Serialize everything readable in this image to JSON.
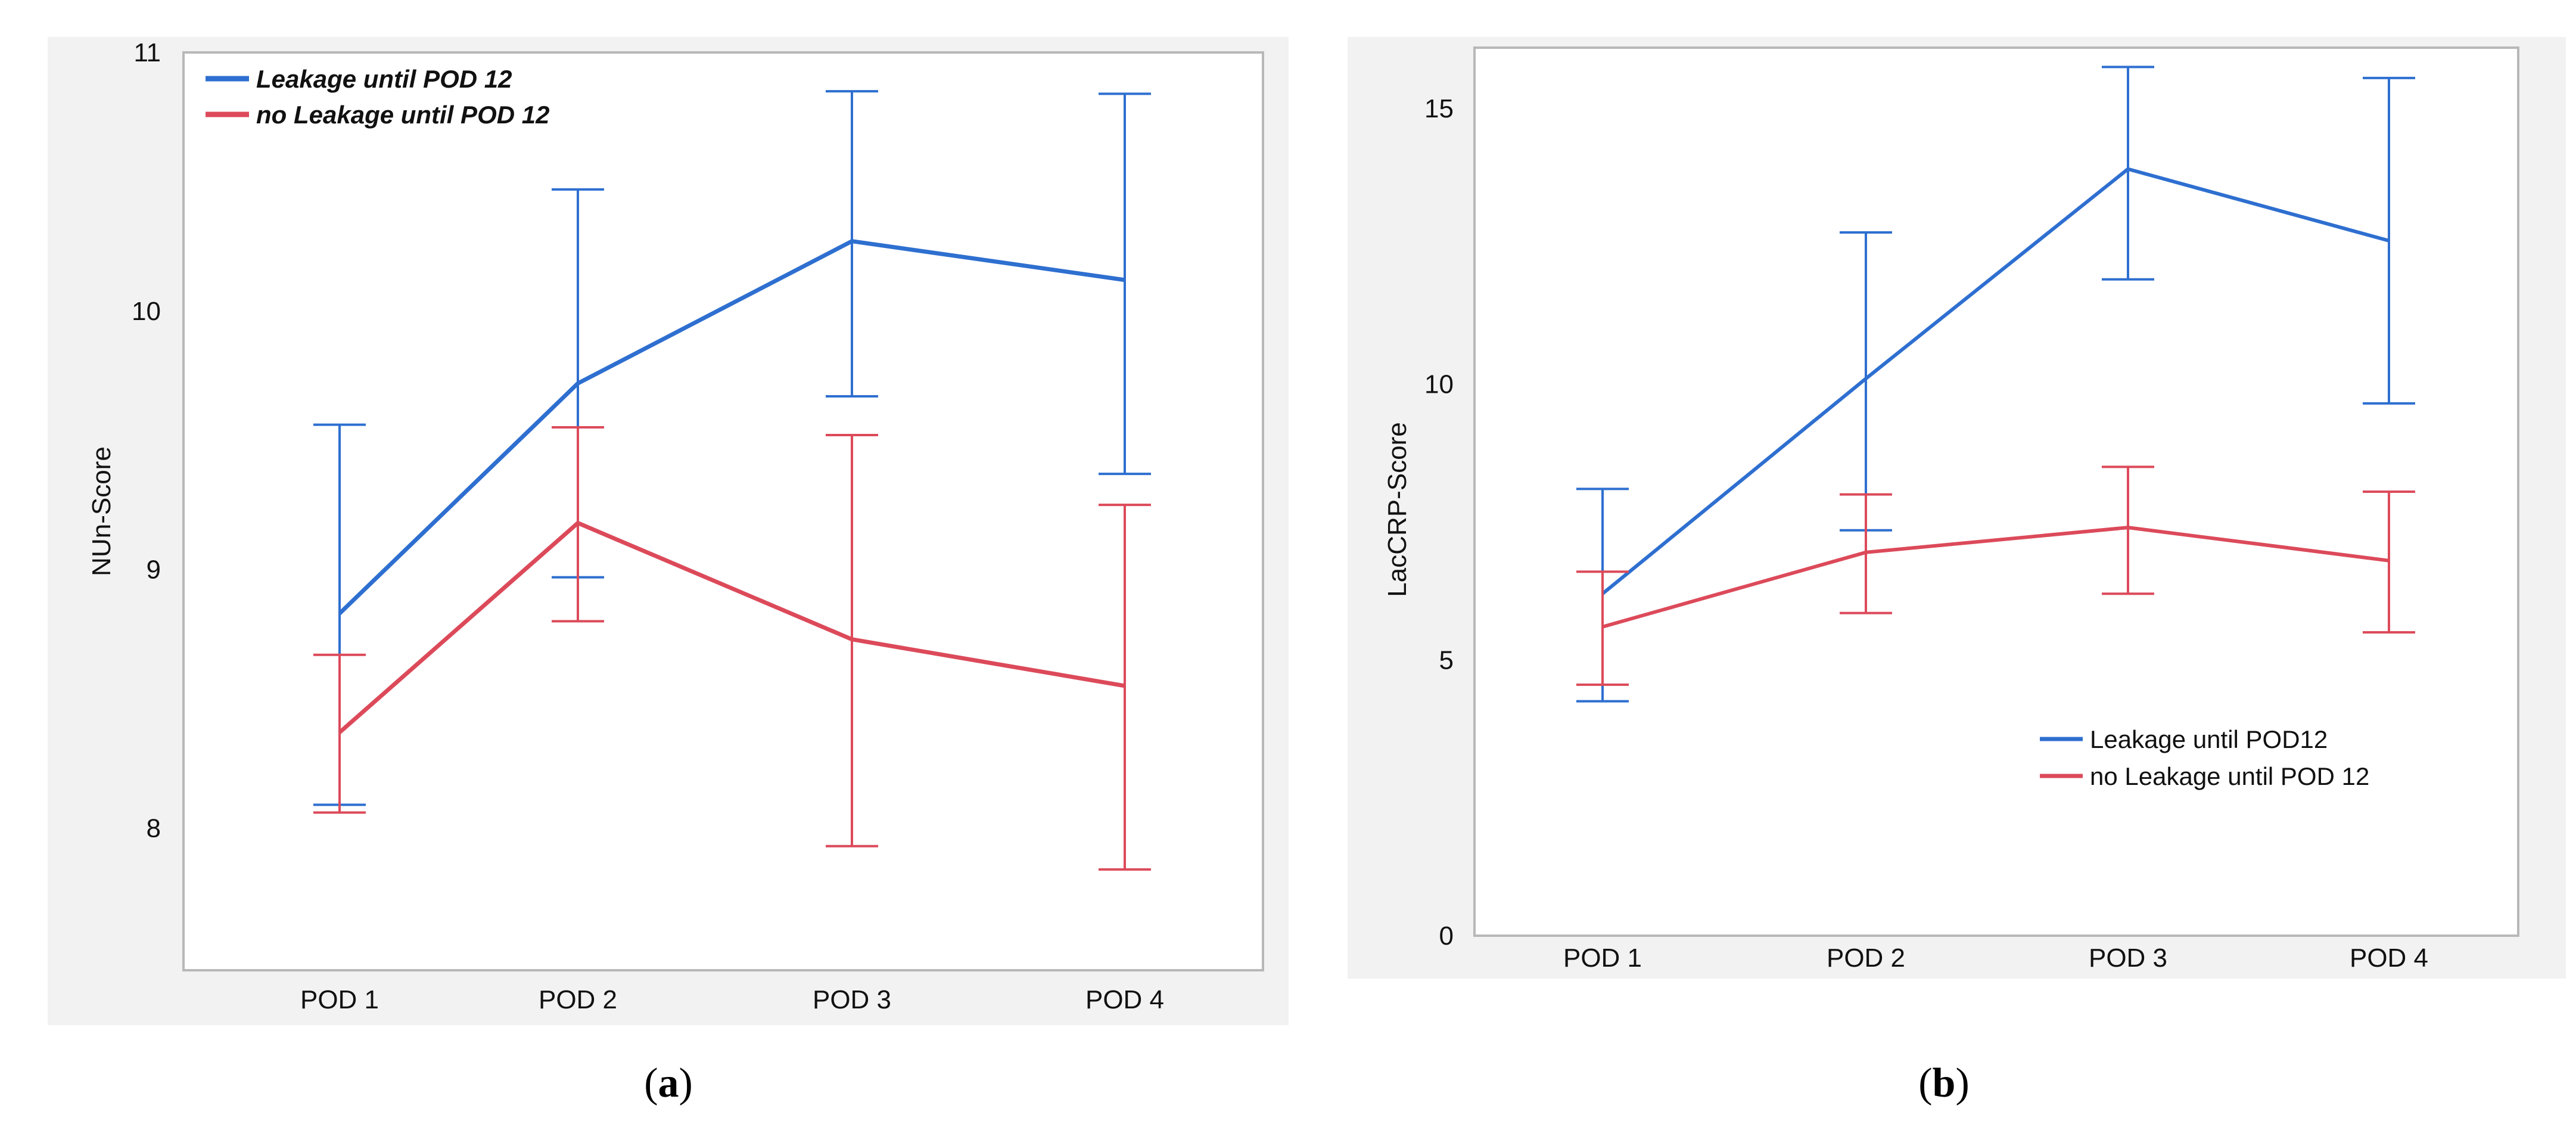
{
  "figure": {
    "captions": [
      {
        "open": "(",
        "letter": "a",
        "close": ")"
      },
      {
        "open": "(",
        "letter": "b",
        "close": ")"
      }
    ]
  },
  "colors": {
    "leakage": "#2e6fd0",
    "no_leakage": "#dc4a5a"
  },
  "chart_data": [
    {
      "type": "line",
      "panel": "a",
      "title": "",
      "xlabel": "",
      "ylabel": "NUn-Score",
      "categories": [
        "POD 1",
        "POD 2",
        "POD 3",
        "POD 4"
      ],
      "ylim": [
        7.45,
        11
      ],
      "yticks": [
        "8",
        "9",
        "10",
        "11"
      ],
      "yticks_values": [
        8,
        9,
        10,
        11
      ],
      "grid": false,
      "legend_position": "top-left",
      "series": [
        {
          "name": "Leakage until POD 12",
          "color": "#2e6fd0",
          "values": [
            8.83,
            9.72,
            10.27,
            10.12
          ],
          "lower": [
            8.09,
            8.97,
            9.67,
            9.37
          ],
          "upper": [
            9.56,
            10.47,
            10.85,
            10.84
          ]
        },
        {
          "name": "no Leakage until POD 12",
          "color": "#dc4a5a",
          "values": [
            8.37,
            9.18,
            8.73,
            8.55
          ],
          "lower": [
            8.06,
            8.8,
            7.93,
            7.84
          ],
          "upper": [
            8.67,
            9.55,
            9.52,
            9.25
          ]
        }
      ]
    },
    {
      "type": "line",
      "panel": "b",
      "title": "",
      "xlabel": "",
      "ylabel": "LacCRP-Score",
      "categories": [
        "POD 1",
        "POD 2",
        "POD 3",
        "POD 4"
      ],
      "ylim": [
        0,
        16.1
      ],
      "yticks": [
        "0",
        "5",
        "10",
        "15"
      ],
      "yticks_values": [
        0,
        5,
        10,
        15
      ],
      "grid": false,
      "legend_position": "bottom-right",
      "series": [
        {
          "name": "Leakage until POD12",
          "color": "#2e6fd0",
          "values": [
            6.2,
            10.1,
            13.9,
            12.6
          ],
          "lower": [
            4.25,
            7.35,
            11.9,
            9.65
          ],
          "upper": [
            8.1,
            12.75,
            15.75,
            15.55
          ]
        },
        {
          "name": "no Leakage until POD 12",
          "color": "#dc4a5a",
          "values": [
            5.6,
            6.95,
            7.4,
            6.8
          ],
          "lower": [
            4.55,
            5.85,
            6.2,
            5.5
          ],
          "upper": [
            6.6,
            8.0,
            8.5,
            8.05
          ]
        }
      ]
    }
  ]
}
